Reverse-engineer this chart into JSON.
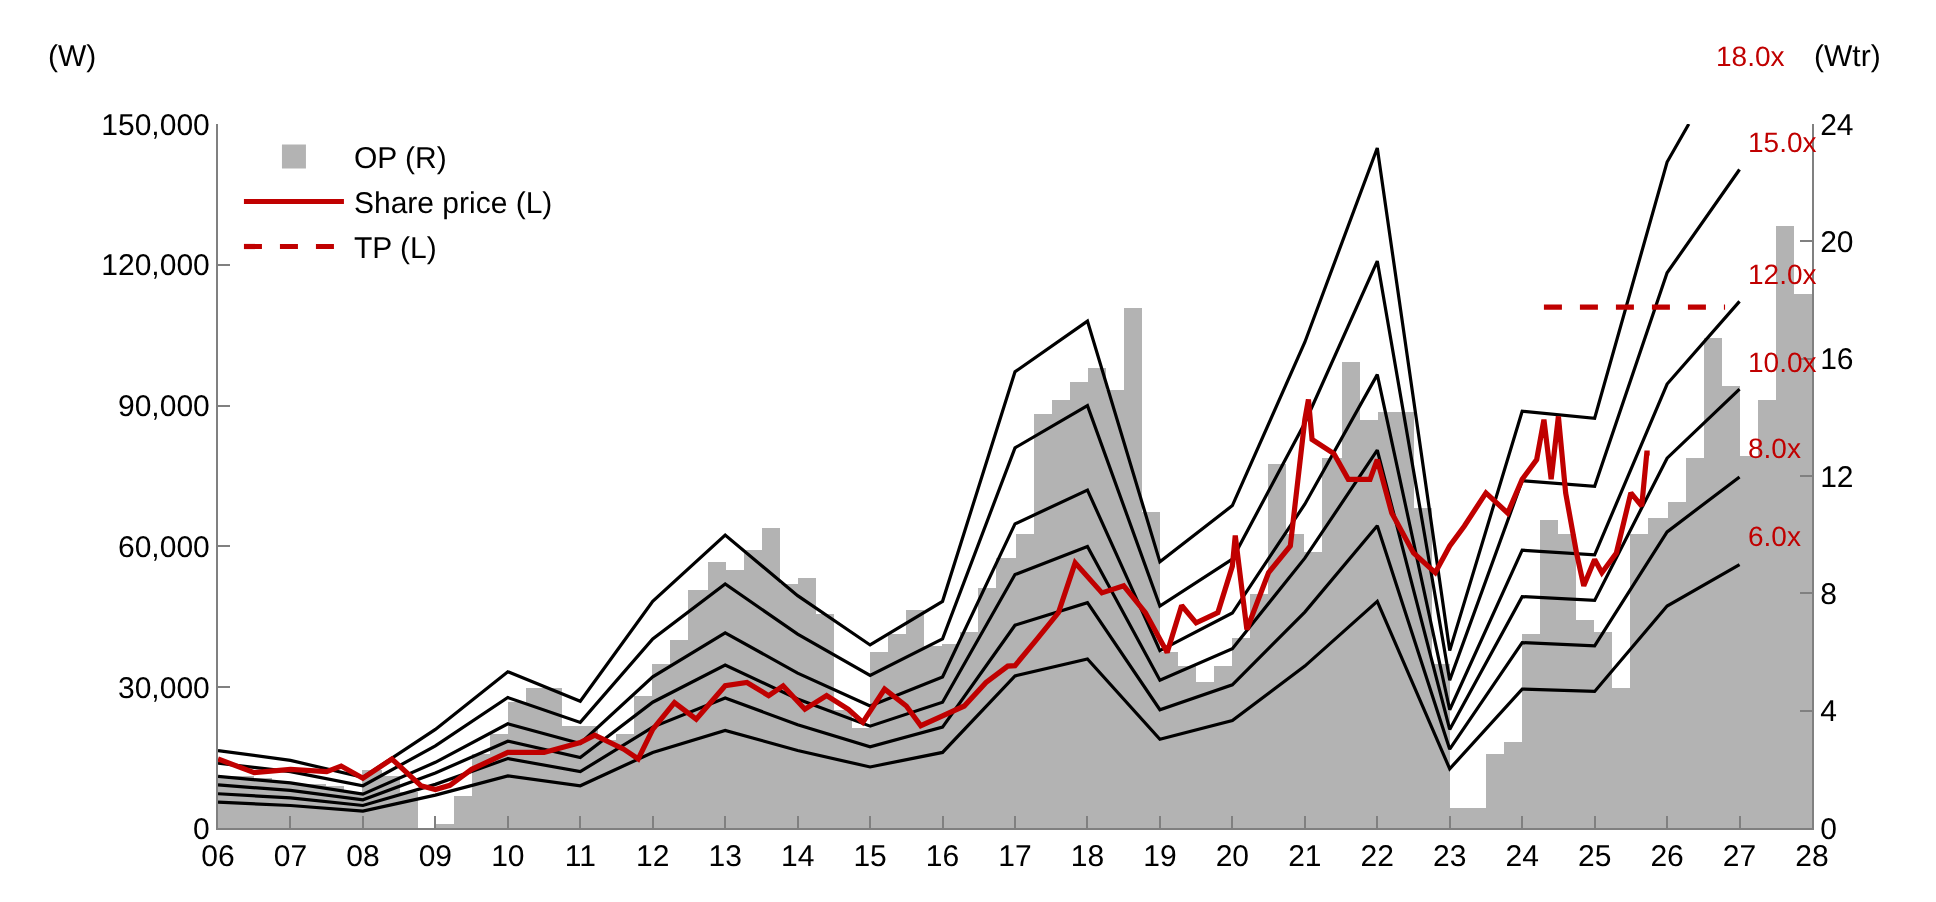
{
  "chart_data": {
    "type": "line",
    "ylabel": "(W)",
    "y2label": "(Wtr)",
    "legend": "top left",
    "marker": "none",
    "xlim": [
      2006,
      2028
    ],
    "xticks": [
      {
        "value": 2006,
        "label": "06"
      },
      {
        "value": 2007,
        "label": "07"
      },
      {
        "value": 2008,
        "label": "08"
      },
      {
        "value": 2009,
        "label": "09"
      },
      {
        "value": 2010,
        "label": "10"
      },
      {
        "value": 2011,
        "label": "11"
      },
      {
        "value": 2012,
        "label": "12"
      },
      {
        "value": 2013,
        "label": "13"
      },
      {
        "value": 2014,
        "label": "14"
      },
      {
        "value": 2015,
        "label": "15"
      },
      {
        "value": 2016,
        "label": "16"
      },
      {
        "value": 2017,
        "label": "17"
      },
      {
        "value": 2018,
        "label": "18"
      },
      {
        "value": 2019,
        "label": "19"
      },
      {
        "value": 2020,
        "label": "20"
      },
      {
        "value": 2021,
        "label": "21"
      },
      {
        "value": 2022,
        "label": "22"
      },
      {
        "value": 2023,
        "label": "23"
      },
      {
        "value": 2024,
        "label": "24"
      },
      {
        "value": 2025,
        "label": "25"
      },
      {
        "value": 2026,
        "label": "26"
      },
      {
        "value": 2027,
        "label": "27"
      },
      {
        "value": 2028,
        "label": "28"
      }
    ],
    "ylim": [
      0,
      150000
    ],
    "yticks": [
      0,
      {
        "value": 30000,
        "label": "30,000"
      },
      {
        "value": 60000,
        "label": "60,000"
      },
      {
        "value": 90000,
        "label": "90,000"
      },
      {
        "value": 120000,
        "label": "120,000"
      },
      {
        "value": 150000,
        "label": "150,000"
      }
    ],
    "y2lim": [
      0,
      24
    ],
    "y2ticks": [
      0,
      4,
      8,
      12,
      16,
      20,
      24
    ],
    "series": [
      {
        "name": "OP (R)",
        "type": "bar",
        "axis": "y2",
        "color": "#b3b3b3",
        "x": [
          2006.125,
          2006.375,
          2006.625,
          2006.875,
          2007.125,
          2007.375,
          2007.625,
          2007.875,
          2008.125,
          2008.375,
          2008.625,
          2008.875,
          2009.125,
          2009.375,
          2009.625,
          2009.875,
          2010.125,
          2010.375,
          2010.625,
          2010.875,
          2011.125,
          2011.375,
          2011.625,
          2011.875,
          2012.125,
          2012.375,
          2012.625,
          2012.875,
          2013.125,
          2013.375,
          2013.625,
          2013.875,
          2014.125,
          2014.375,
          2014.625,
          2014.875,
          2015.125,
          2015.375,
          2015.625,
          2015.875,
          2016.125,
          2016.375,
          2016.625,
          2016.875,
          2017.125,
          2017.375,
          2017.625,
          2017.875,
          2018.125,
          2018.375,
          2018.625,
          2018.875,
          2019.125,
          2019.375,
          2019.625,
          2019.875,
          2020.125,
          2020.375,
          2020.625,
          2020.875,
          2021.125,
          2021.375,
          2021.625,
          2021.875,
          2022.125,
          2022.375,
          2022.625,
          2022.875,
          2023.125,
          2023.375,
          2023.625,
          2023.875,
          2024.125,
          2024.375,
          2024.625,
          2024.875,
          2025.125,
          2025.375,
          2025.625,
          2025.875,
          2026.125,
          2026.375,
          2026.625,
          2026.875,
          2027.125,
          2027.375,
          2027.625,
          2027.875
        ],
        "values": [
          1.8,
          1.8,
          1.7,
          1.6,
          1.5,
          1.5,
          1.4,
          1.2,
          2.0,
          1.8,
          1.2,
          0.0,
          0.1,
          1.1,
          2.5,
          3.2,
          4.3,
          4.8,
          4.8,
          3.5,
          3.5,
          3.0,
          3.2,
          4.5,
          5.6,
          6.4,
          8.1,
          9.1,
          8.8,
          9.5,
          10.2,
          8.3,
          8.5,
          7.3,
          4.0,
          3.4,
          6.0,
          6.6,
          7.4,
          6.2,
          6.3,
          6.7,
          8.2,
          9.2,
          10.0,
          14.1,
          14.6,
          15.2,
          15.7,
          14.9,
          17.7,
          10.8,
          6.0,
          5.5,
          5.0,
          5.5,
          6.5,
          8.0,
          12.4,
          10.0,
          9.4,
          12.6,
          15.9,
          13.9,
          14.2,
          14.2,
          10.9,
          5.6,
          0.7,
          0.7,
          2.5,
          2.9,
          6.6,
          10.5,
          10.0,
          7.1,
          6.7,
          4.8,
          10.0,
          10.6,
          11.1,
          12.6,
          16.7,
          15.1,
          12.7,
          14.6,
          20.5,
          18.2
        ]
      },
      {
        "type": "line",
        "color": "#000000",
        "x": [
          2006,
          2007,
          2008,
          2009,
          2010,
          2011,
          2012,
          2013,
          2014,
          2015,
          2016,
          2017,
          2018,
          2019,
          2020,
          2021,
          2022,
          2023,
          2024,
          2025,
          2026,
          2027
        ],
        "values": [
          5500,
          4800,
          3600,
          7000,
          11100,
          9000,
          16100,
          20800,
          16500,
          13000,
          16100,
          32400,
          36000,
          18900,
          22900,
          34500,
          48300,
          12600,
          29600,
          29100,
          47300,
          56100
        ]
      },
      {
        "type": "line",
        "color": "#000000",
        "x": [
          2006,
          2007,
          2008,
          2009,
          2010,
          2011,
          2012,
          2013,
          2014,
          2015,
          2016,
          2017,
          2018,
          2019,
          2020,
          2021,
          2022,
          2023,
          2024,
          2025,
          2026,
          2027
        ],
        "values": [
          7300,
          6400,
          4800,
          9300,
          14800,
          12000,
          21500,
          27700,
          22000,
          17300,
          21500,
          43200,
          48000,
          25200,
          30500,
          46000,
          64400,
          16800,
          39500,
          38800,
          63100,
          74800
        ]
      },
      {
        "type": "line",
        "color": "#000000",
        "x": [
          2006,
          2007,
          2008,
          2009,
          2010,
          2011,
          2012,
          2013,
          2014,
          2015,
          2016,
          2017,
          2018,
          2019,
          2020,
          2021,
          2022,
          2023,
          2024,
          2025,
          2026,
          2027
        ],
        "values": [
          9200,
          8000,
          6000,
          11700,
          18500,
          15000,
          26800,
          34700,
          27500,
          21700,
          26800,
          54000,
          60000,
          31500,
          38200,
          57500,
          80500,
          21000,
          49300,
          48500,
          78800,
          93500
        ]
      },
      {
        "type": "line",
        "color": "#000000",
        "x": [
          2006,
          2007,
          2008,
          2009,
          2010,
          2011,
          2012,
          2013,
          2014,
          2015,
          2016,
          2017,
          2018,
          2019,
          2020,
          2021,
          2022,
          2023,
          2024,
          2025,
          2026,
          2027
        ],
        "values": [
          11000,
          9600,
          7200,
          14000,
          22200,
          18000,
          32200,
          41600,
          33000,
          26000,
          32200,
          64800,
          72000,
          37800,
          45800,
          69000,
          96600,
          25200,
          59200,
          58200,
          94600,
          112200
        ]
      },
      {
        "type": "line",
        "color": "#000000",
        "x": [
          2006,
          2007,
          2008,
          2009,
          2010,
          2011,
          2012,
          2013,
          2014,
          2015,
          2016,
          2017,
          2018,
          2019,
          2020,
          2021,
          2022,
          2023,
          2024,
          2025,
          2026,
          2027
        ],
        "values": [
          13800,
          12000,
          9000,
          17500,
          27800,
          22500,
          40300,
          52000,
          41300,
          32500,
          40300,
          81000,
          90000,
          47300,
          57300,
          86300,
          120800,
          31500,
          74000,
          72800,
          118300,
          140300
        ]
      },
      {
        "type": "line",
        "color": "#000000",
        "x": [
          2006,
          2007,
          2008,
          2009,
          2010,
          2011,
          2012,
          2013,
          2014,
          2015,
          2016,
          2017,
          2018,
          2019,
          2020,
          2021,
          2022,
          2023,
          2024,
          2025,
          2026,
          2026.3
        ],
        "values": [
          16500,
          14400,
          10800,
          21000,
          33300,
          27000,
          48300,
          62400,
          49500,
          39000,
          48300,
          97200,
          108000,
          56700,
          68700,
          103500,
          144900,
          37800,
          88800,
          87300,
          141900,
          150000
        ]
      },
      {
        "name": "Share price (L)",
        "color": "#c00000",
        "x": [
          2006.0,
          2006.5,
          2007.0,
          2007.5,
          2007.7,
          2008.0,
          2008.4,
          2008.8,
          2009.0,
          2009.2,
          2009.5,
          2010.0,
          2010.5,
          2011.0,
          2011.2,
          2011.6,
          2011.8,
          2012.0,
          2012.3,
          2012.6,
          2013.0,
          2013.3,
          2013.6,
          2013.8,
          2014.1,
          2014.4,
          2014.7,
          2014.9,
          2015.2,
          2015.5,
          2015.7,
          2016.0,
          2016.3,
          2016.6,
          2016.9,
          2017.0,
          2017.3,
          2017.6,
          2017.83,
          2018.2,
          2018.5,
          2018.8,
          2019.1,
          2019.3,
          2019.5,
          2019.8,
          2020.0,
          2020.04,
          2020.2,
          2020.5,
          2020.8,
          2021.0,
          2021.05,
          2021.1,
          2021.4,
          2021.6,
          2021.9,
          2022.0,
          2022.2,
          2022.5,
          2022.8,
          2023.0,
          2023.2,
          2023.5,
          2023.8,
          2024.0,
          2024.2,
          2024.3,
          2024.4,
          2024.5,
          2024.6,
          2024.75,
          2024.85,
          2025.0,
          2025.1,
          2025.3,
          2025.5,
          2025.65,
          2025.72,
          2025.76
        ],
        "values": [
          14700,
          11800,
          12500,
          12000,
          13200,
          10600,
          14700,
          9000,
          8200,
          9100,
          12500,
          16100,
          16100,
          18200,
          19800,
          16800,
          14700,
          21000,
          26700,
          23200,
          30300,
          31000,
          28200,
          30300,
          25300,
          28200,
          25300,
          22500,
          29600,
          26000,
          21800,
          23900,
          26000,
          31000,
          34500,
          34600,
          40200,
          45900,
          56500,
          50100,
          51600,
          45900,
          37400,
          47400,
          43700,
          45900,
          55800,
          62300,
          42300,
          54400,
          60100,
          87000,
          91300,
          82800,
          79800,
          74300,
          74300,
          78500,
          67100,
          58600,
          54400,
          60100,
          64300,
          71400,
          67100,
          74300,
          78500,
          87000,
          74300,
          87700,
          71400,
          58600,
          51600,
          57200,
          54400,
          58600,
          71400,
          68600,
          79900,
          79900
        ]
      },
      {
        "name": "TP (L)",
        "line_style": "dashed",
        "color": "#c00000",
        "x": [
          2024.3,
          2026.8
        ],
        "values": [
          111000,
          111000
        ]
      }
    ],
    "annotations": [
      "6.0x",
      "8.0x",
      "10.0x",
      "12.0x",
      "15.0x",
      "18.0x"
    ]
  }
}
